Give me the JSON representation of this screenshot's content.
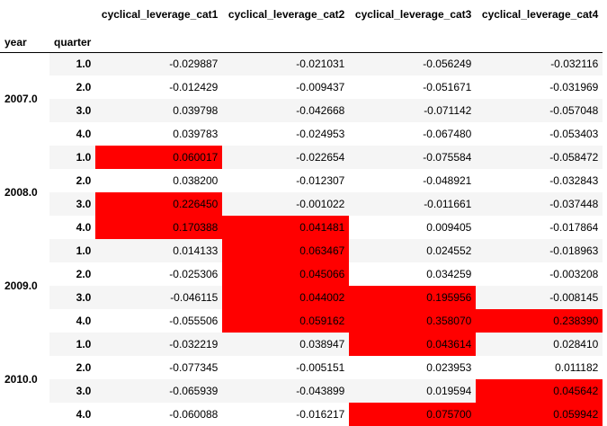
{
  "table": {
    "columns": [
      "cyclical_leverage_cat1",
      "cyclical_leverage_cat2",
      "cyclical_leverage_cat3",
      "cyclical_leverage_cat4"
    ],
    "index_names": [
      "year",
      "quarter"
    ],
    "highlight_color": "#ff0000",
    "groups": [
      {
        "year": "2007.0",
        "rows": [
          {
            "quarter": "1.0",
            "values": [
              "-0.029887",
              "-0.021031",
              "-0.056249",
              "-0.032116"
            ],
            "highlight": [
              false,
              false,
              false,
              false
            ]
          },
          {
            "quarter": "2.0",
            "values": [
              "-0.012429",
              "-0.009437",
              "-0.051671",
              "-0.031969"
            ],
            "highlight": [
              false,
              false,
              false,
              false
            ]
          },
          {
            "quarter": "3.0",
            "values": [
              "0.039798",
              "-0.042668",
              "-0.071142",
              "-0.057048"
            ],
            "highlight": [
              false,
              false,
              false,
              false
            ]
          },
          {
            "quarter": "4.0",
            "values": [
              "0.039783",
              "-0.024953",
              "-0.067480",
              "-0.053403"
            ],
            "highlight": [
              false,
              false,
              false,
              false
            ]
          }
        ]
      },
      {
        "year": "2008.0",
        "rows": [
          {
            "quarter": "1.0",
            "values": [
              "0.060017",
              "-0.022654",
              "-0.075584",
              "-0.058472"
            ],
            "highlight": [
              true,
              false,
              false,
              false
            ]
          },
          {
            "quarter": "2.0",
            "values": [
              "0.038200",
              "-0.012307",
              "-0.048921",
              "-0.032843"
            ],
            "highlight": [
              false,
              false,
              false,
              false
            ]
          },
          {
            "quarter": "3.0",
            "values": [
              "0.226450",
              "-0.001022",
              "-0.011661",
              "-0.037448"
            ],
            "highlight": [
              true,
              false,
              false,
              false
            ]
          },
          {
            "quarter": "4.0",
            "values": [
              "0.170388",
              "0.041481",
              "0.009405",
              "-0.017864"
            ],
            "highlight": [
              true,
              true,
              false,
              false
            ]
          }
        ]
      },
      {
        "year": "2009.0",
        "rows": [
          {
            "quarter": "1.0",
            "values": [
              "0.014133",
              "0.063467",
              "0.024552",
              "-0.018963"
            ],
            "highlight": [
              false,
              true,
              false,
              false
            ]
          },
          {
            "quarter": "2.0",
            "values": [
              "-0.025306",
              "0.045066",
              "0.034259",
              "-0.003208"
            ],
            "highlight": [
              false,
              true,
              false,
              false
            ]
          },
          {
            "quarter": "3.0",
            "values": [
              "-0.046115",
              "0.044002",
              "0.195956",
              "-0.008145"
            ],
            "highlight": [
              false,
              true,
              true,
              false
            ]
          },
          {
            "quarter": "4.0",
            "values": [
              "-0.055506",
              "0.059162",
              "0.358070",
              "0.238390"
            ],
            "highlight": [
              false,
              true,
              true,
              true
            ]
          }
        ]
      },
      {
        "year": "2010.0",
        "rows": [
          {
            "quarter": "1.0",
            "values": [
              "-0.032219",
              "0.038947",
              "0.043614",
              "0.028410"
            ],
            "highlight": [
              false,
              false,
              true,
              false
            ]
          },
          {
            "quarter": "2.0",
            "values": [
              "-0.077345",
              "-0.005151",
              "0.023953",
              "0.011182"
            ],
            "highlight": [
              false,
              false,
              false,
              false
            ]
          },
          {
            "quarter": "3.0",
            "values": [
              "-0.065939",
              "-0.043899",
              "0.019594",
              "0.045642"
            ],
            "highlight": [
              false,
              false,
              false,
              true
            ]
          },
          {
            "quarter": "4.0",
            "values": [
              "-0.060088",
              "-0.016217",
              "0.075700",
              "0.059942"
            ],
            "highlight": [
              false,
              false,
              true,
              true
            ]
          }
        ]
      }
    ]
  }
}
